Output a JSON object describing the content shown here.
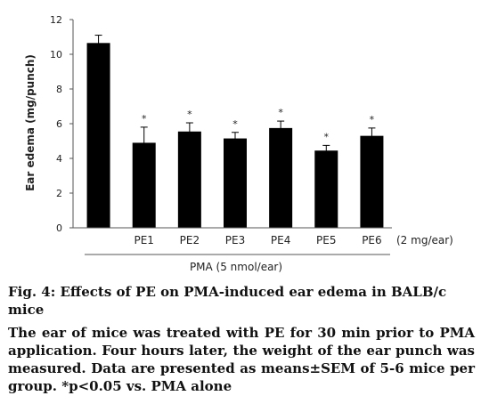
{
  "chart_data": {
    "type": "bar",
    "categories": [
      "",
      "PE1",
      "PE2",
      "PE3",
      "PE4",
      "PE5",
      "PE6"
    ],
    "values": [
      10.65,
      4.9,
      5.55,
      5.15,
      5.75,
      4.45,
      5.3
    ],
    "errors": [
      0.45,
      0.9,
      0.5,
      0.35,
      0.4,
      0.3,
      0.45
    ],
    "significance": [
      "",
      "*",
      "*",
      "*",
      "*",
      "*",
      "*"
    ],
    "ylabel": "Ear edema (mg/punch)",
    "yticks": [
      0,
      2,
      4,
      6,
      8,
      10,
      12
    ],
    "ylim": [
      0,
      12
    ],
    "dose_label": "(2 mg/ear)",
    "group_label": "PMA (5 nmol/ear)",
    "bar_color": "#000000",
    "grid": false
  },
  "caption": {
    "title": "Fig. 4: Effects of PE on PMA-induced ear edema in BALB/c mice",
    "body": "The ear of mice was treated with PE for 30 min prior to PMA application. Four hours later, the weight of the ear punch was measured. Data are presented as means±SEM of 5-6 mice per group. *p<0.05 vs. PMA alone"
  }
}
